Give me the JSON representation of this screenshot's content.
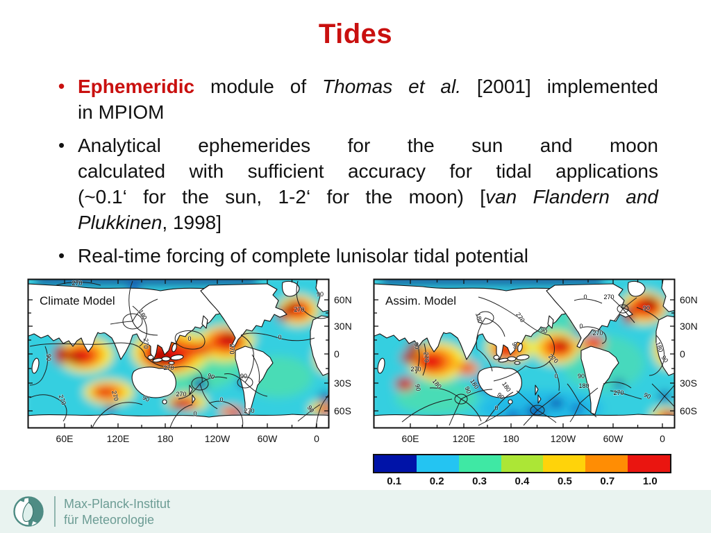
{
  "slide": {
    "title": "Tides",
    "accent_red": "#C9100F",
    "bullet_glyph": "•",
    "bullets": [
      {
        "marker_class": "rb",
        "lines": [
          [
            {
              "t": "Ephemeridic",
              "c": "rb"
            },
            {
              "t": " module of ",
              "c": ""
            },
            {
              "t": "Thomas et al.",
              "c": "i"
            },
            {
              "t": " [2001] implemented",
              "c": ""
            }
          ],
          [
            {
              "t": "in MPIOM",
              "c": ""
            }
          ]
        ]
      },
      {
        "marker_class": "",
        "lines": [
          [
            {
              "t": "Analytical ephemerides for the sun and moon",
              "c": ""
            }
          ],
          [
            {
              "t": "calculated with sufficient accuracy for tidal applications",
              "c": ""
            }
          ],
          [
            {
              "t": "(~0.1‘ for the sun, 1-2‘ for the moon) [",
              "c": ""
            },
            {
              "t": "van Flandern and",
              "c": "i"
            }
          ],
          [
            {
              "t": "Plukkinen",
              "c": "i"
            },
            {
              "t": ", 1998]",
              "c": ""
            }
          ]
        ]
      },
      {
        "marker_class": "",
        "lines": [
          [
            {
              "t": "Real-time forcing of complete lunisolar tidal potential",
              "c": ""
            }
          ]
        ]
      }
    ]
  },
  "chart_data": [
    {
      "type": "heatmap",
      "label": "Climate Model",
      "x_ticks": [
        {
          "label": "60E",
          "x": 52
        },
        {
          "label": "120E",
          "x": 129
        },
        {
          "label": "180",
          "x": 197
        },
        {
          "label": "120W",
          "x": 272
        },
        {
          "label": "60W",
          "x": 344
        },
        {
          "label": "0",
          "x": 415
        }
      ],
      "y_ticks": [
        {
          "label": "60N",
          "y": 29
        },
        {
          "label": "30N",
          "y": 67
        },
        {
          "label": "0",
          "y": 107
        },
        {
          "label": "30S",
          "y": 149
        },
        {
          "label": "60S",
          "y": 189
        }
      ],
      "contour_labels": [
        {
          "v": "270",
          "x": 70,
          "y": 8,
          "r": 0
        },
        {
          "v": "90",
          "x": 420,
          "y": 24,
          "r": 0
        },
        {
          "v": "270",
          "x": 390,
          "y": 46,
          "r": 0
        },
        {
          "v": "180",
          "x": 162,
          "y": 52,
          "r": 60
        },
        {
          "v": "270",
          "x": 166,
          "y": 92,
          "r": 90
        },
        {
          "v": "0",
          "x": 232,
          "y": 88,
          "r": 0
        },
        {
          "v": "90",
          "x": 26,
          "y": 112,
          "r": 90
        },
        {
          "v": "270",
          "x": 202,
          "y": 130,
          "r": 0
        },
        {
          "v": "90",
          "x": 262,
          "y": 142,
          "r": 20
        },
        {
          "v": "90",
          "x": 310,
          "y": 142,
          "r": 0
        },
        {
          "v": "270",
          "x": 290,
          "y": 100,
          "r": 90
        },
        {
          "v": "0",
          "x": 362,
          "y": 86,
          "r": 0
        },
        {
          "v": "270",
          "x": 46,
          "y": 174,
          "r": 70
        },
        {
          "v": "270",
          "x": 122,
          "y": 168,
          "r": 75
        },
        {
          "v": "90",
          "x": 168,
          "y": 174,
          "r": 25
        },
        {
          "v": "270",
          "x": 220,
          "y": 168,
          "r": 0
        },
        {
          "v": "0",
          "x": 278,
          "y": 176,
          "r": 0
        },
        {
          "v": "270",
          "x": 318,
          "y": 192,
          "r": 0
        },
        {
          "v": "90",
          "x": 404,
          "y": 188,
          "r": 55
        },
        {
          "v": "0",
          "x": 240,
          "y": 196,
          "r": 0
        }
      ]
    },
    {
      "type": "heatmap",
      "label": "Assim. Model",
      "x_ticks": [
        {
          "label": "60E",
          "x": 52
        },
        {
          "label": "120E",
          "x": 129
        },
        {
          "label": "180",
          "x": 197
        },
        {
          "label": "120W",
          "x": 272
        },
        {
          "label": "60W",
          "x": 344
        },
        {
          "label": "0",
          "x": 415
        }
      ],
      "y_ticks": [
        {
          "label": "60N",
          "y": 29
        },
        {
          "label": "30N",
          "y": 67
        },
        {
          "label": "0",
          "y": 107
        },
        {
          "label": "30S",
          "y": 149
        },
        {
          "label": "60S",
          "y": 189
        }
      ],
      "contour_labels": [
        {
          "v": "90",
          "x": 58,
          "y": 96,
          "r": 75
        },
        {
          "v": "270",
          "x": 72,
          "y": 112,
          "r": 85
        },
        {
          "v": "270",
          "x": 60,
          "y": 132,
          "r": 0
        },
        {
          "v": "180",
          "x": 148,
          "y": 56,
          "r": 75
        },
        {
          "v": "270",
          "x": 208,
          "y": 56,
          "r": 55
        },
        {
          "v": "90",
          "x": 243,
          "y": 76,
          "r": 25
        },
        {
          "v": "90",
          "x": 200,
          "y": 96,
          "r": 70
        },
        {
          "v": "0",
          "x": 298,
          "y": 70,
          "r": 0
        },
        {
          "v": "270",
          "x": 322,
          "y": 80,
          "r": 0
        },
        {
          "v": "270",
          "x": 256,
          "y": 116,
          "r": 40
        },
        {
          "v": "0",
          "x": 262,
          "y": 142,
          "r": 0
        },
        {
          "v": "90",
          "x": 298,
          "y": 142,
          "r": 0
        },
        {
          "v": "180",
          "x": 302,
          "y": 156,
          "r": 0
        },
        {
          "v": "180",
          "x": 88,
          "y": 152,
          "r": 50
        },
        {
          "v": "90",
          "x": 60,
          "y": 156,
          "r": 80
        },
        {
          "v": "180",
          "x": 142,
          "y": 152,
          "r": 55
        },
        {
          "v": "90",
          "x": 132,
          "y": 160,
          "r": 70
        },
        {
          "v": "180",
          "x": 188,
          "y": 156,
          "r": 55
        },
        {
          "v": "90",
          "x": 180,
          "y": 170,
          "r": 40
        },
        {
          "v": "0",
          "x": 176,
          "y": 188,
          "r": 0
        },
        {
          "v": "270",
          "x": 352,
          "y": 166,
          "r": 0
        },
        {
          "v": "90",
          "x": 392,
          "y": 170,
          "r": 25
        },
        {
          "v": "180",
          "x": 408,
          "y": 98,
          "r": 70
        },
        {
          "v": "90",
          "x": 416,
          "y": 116,
          "r": 55
        },
        {
          "v": "0",
          "x": 304,
          "y": 28,
          "r": 0
        },
        {
          "v": "90",
          "x": 392,
          "y": 44,
          "r": 0
        },
        {
          "v": "270",
          "x": 338,
          "y": 28,
          "r": 0
        }
      ]
    },
    {
      "type": "colorbar",
      "stops": [
        {
          "label": "0.1",
          "color": "#0013A8"
        },
        {
          "label": "0.2",
          "color": "#24C4F2"
        },
        {
          "label": "0.3",
          "color": "#3FE8A4"
        },
        {
          "label": "0.4",
          "color": "#ACE636"
        },
        {
          "label": "0.5",
          "color": "#FFD30A"
        },
        {
          "label": "0.7",
          "color": "#FF8D04"
        },
        {
          "label": "1.0",
          "color": "#EA1510"
        }
      ]
    }
  ],
  "footer": {
    "line1": "Max-Planck-Institut",
    "line2": "für Meteorologie",
    "teal": "#4E8C84"
  }
}
